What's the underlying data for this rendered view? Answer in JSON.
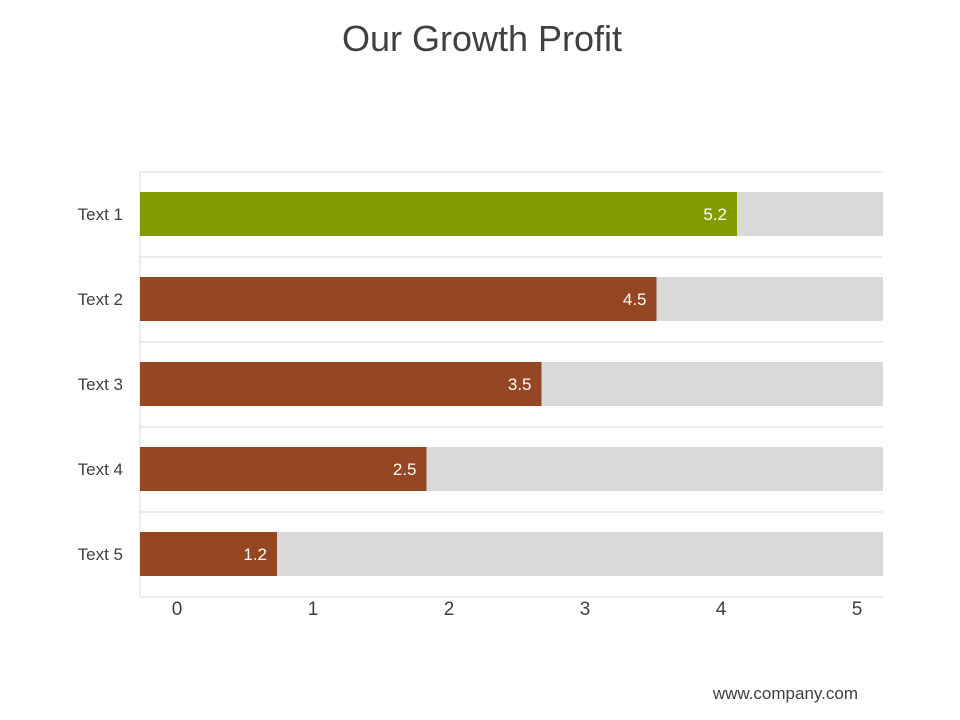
{
  "title": "Our Growth Profit",
  "footer": "www.company.com",
  "colors": {
    "highlight": "#839b00",
    "bar": "#954622",
    "track": "#d9d9d9",
    "grid": "#d9d9d9",
    "label_text": "#404040",
    "value_text": "#ffffff"
  },
  "chart_data": {
    "type": "bar",
    "orientation": "horizontal",
    "categories": [
      "Text 1",
      "Text 2",
      "Text 3",
      "Text 4",
      "Text 5"
    ],
    "values": [
      5.2,
      4.5,
      3.5,
      2.5,
      1.2
    ],
    "data_labels": [
      "5.2",
      "4.5",
      "3.5",
      "2.5",
      "1.2"
    ],
    "xticks": [
      0,
      1,
      2,
      3,
      4,
      5
    ],
    "xtick_labels": [
      "0",
      "1",
      "2",
      "3",
      "4",
      "5"
    ],
    "title": "Our Growth Profit",
    "xlabel": "",
    "ylabel": "",
    "grid": true,
    "legend": "none"
  }
}
